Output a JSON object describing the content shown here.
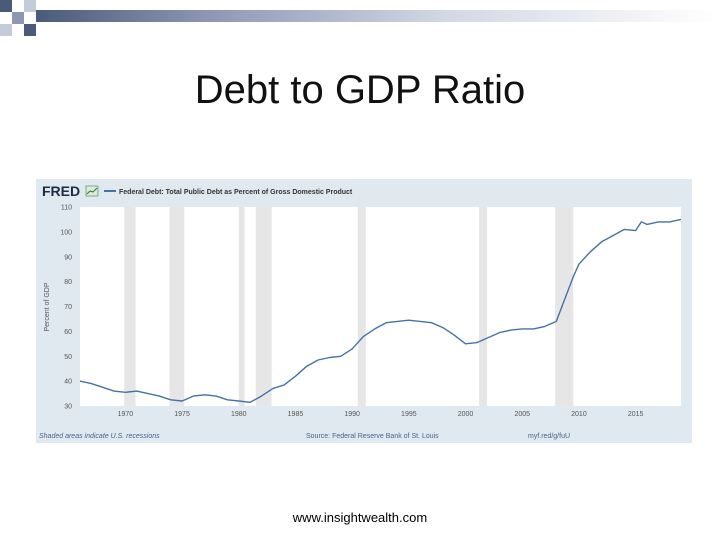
{
  "slide": {
    "title": "Debt to GDP Ratio",
    "footer_url": "www.insightwealth.com"
  },
  "colors": {
    "deco_dark": "#4a5a7a",
    "deco_mid": "#8b97b3",
    "panel_bg": "#e1e9f0",
    "plot_bg": "#ffffff",
    "recession": "#e6e6e6",
    "line": "#4572a7",
    "fred_text": "#1f2a44",
    "fred_accent": "#2a8a3a"
  },
  "fred": {
    "logo": "FRED",
    "logo_icon": "fred-graph-icon",
    "legend_label": "Federal Debt: Total Public Debt as Percent of Gross Domestic Product",
    "note_left": "Shaded areas indicate U.S. recessions",
    "note_center": "Source: Federal Reserve Bank of St. Louis",
    "note_right": "myf.red/g/fuU"
  },
  "chart_data": {
    "type": "line",
    "title": "",
    "xlabel": "",
    "ylabel": "Percent of GDP",
    "xlim": [
      1966,
      2019
    ],
    "ylim": [
      30,
      110
    ],
    "yticks": [
      30,
      40,
      50,
      60,
      70,
      80,
      90,
      100,
      110
    ],
    "xticks": [
      "1970",
      "1975",
      "1980",
      "1985",
      "1990",
      "1995",
      "2000",
      "2005",
      "2010",
      "2015"
    ],
    "grid": false,
    "recessions": [
      [
        1969.9,
        1970.9
      ],
      [
        1973.9,
        1975.2
      ],
      [
        1980.0,
        1980.5
      ],
      [
        1981.5,
        1982.9
      ],
      [
        1990.5,
        1991.2
      ],
      [
        2001.2,
        2001.9
      ],
      [
        2007.9,
        2009.5
      ]
    ],
    "series": [
      {
        "name": "Federal Debt: Total Public Debt as Percent of Gross Domestic Product",
        "x": [
          1966,
          1967,
          1968,
          1969,
          1970,
          1971,
          1972,
          1973,
          1974,
          1975,
          1976,
          1977,
          1978,
          1979,
          1980,
          1981,
          1982,
          1983,
          1984,
          1985,
          1986,
          1987,
          1988,
          1989,
          1990,
          1991,
          1992,
          1993,
          1994,
          1995,
          1996,
          1997,
          1998,
          1999,
          2000,
          2001,
          2002,
          2003,
          2004,
          2005,
          2006,
          2007,
          2008,
          2008.75,
          2009.5,
          2010,
          2011,
          2012,
          2013,
          2014,
          2015,
          2015.5,
          2016,
          2017,
          2018,
          2019
        ],
        "values": [
          40,
          39,
          37.5,
          36,
          35.5,
          36,
          35,
          34,
          32.5,
          32,
          34,
          34.5,
          34,
          32.5,
          32,
          31.5,
          34,
          37,
          38.5,
          42,
          46,
          48.5,
          49.5,
          50,
          53,
          58,
          61,
          63.5,
          64,
          64.5,
          64,
          63.5,
          61.5,
          58.5,
          55,
          55.5,
          57.5,
          59.5,
          60.5,
          61,
          61,
          62,
          64,
          73,
          82,
          87,
          92,
          96,
          98.5,
          101,
          100.5,
          104,
          103,
          104,
          104,
          105
        ]
      }
    ]
  }
}
